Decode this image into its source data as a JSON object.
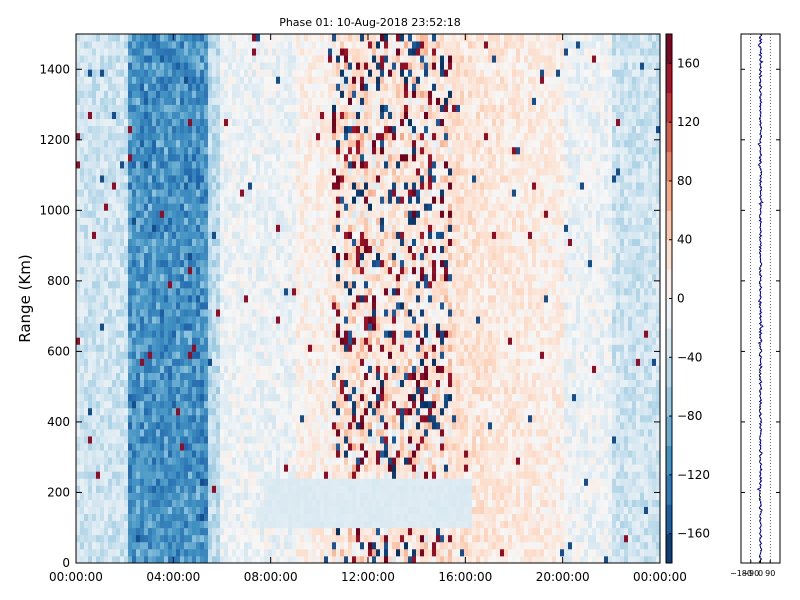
{
  "chart_data": [
    {
      "type": "heatmap",
      "title": "Phase 01: 10-Aug-2018 23:52:18",
      "ylabel": "Range (Km)",
      "xlabel": "",
      "x_ticks": [
        "00:00:00",
        "04:00:00",
        "08:00:00",
        "12:00:00",
        "16:00:00",
        "20:00:00",
        "00:00:00"
      ],
      "xlim_hours": [
        0,
        24
      ],
      "y_ticks": [
        0,
        200,
        400,
        600,
        800,
        1000,
        1200,
        1400
      ],
      "ylim": [
        0,
        1500
      ],
      "colorbar": {
        "ticks": [
          160,
          120,
          80,
          40,
          0,
          -40,
          -80,
          -120,
          -160
        ],
        "range": [
          -180,
          180
        ],
        "colormap": "RdBu_r"
      },
      "features": [
        {
          "description": "strong negative band",
          "x_hours": [
            2.2,
            5.4
          ],
          "value": -110
        },
        {
          "description": "mixed high-variance band",
          "x_hours": [
            10.5,
            15.5
          ],
          "value": 20
        },
        {
          "description": "low-range uniform patch",
          "x_hours": [
            7.8,
            16.2
          ],
          "range_km": [
            110,
            230
          ],
          "value": -25
        }
      ]
    },
    {
      "type": "line",
      "x_ticks": [
        "-180",
        "-90",
        "0",
        "90"
      ],
      "xlim": [
        -180,
        180
      ],
      "ylim": [
        0,
        1500
      ],
      "series": [
        {
          "color": "#0000cc",
          "description": "phase profile vs range, centred near 0"
        }
      ]
    }
  ]
}
